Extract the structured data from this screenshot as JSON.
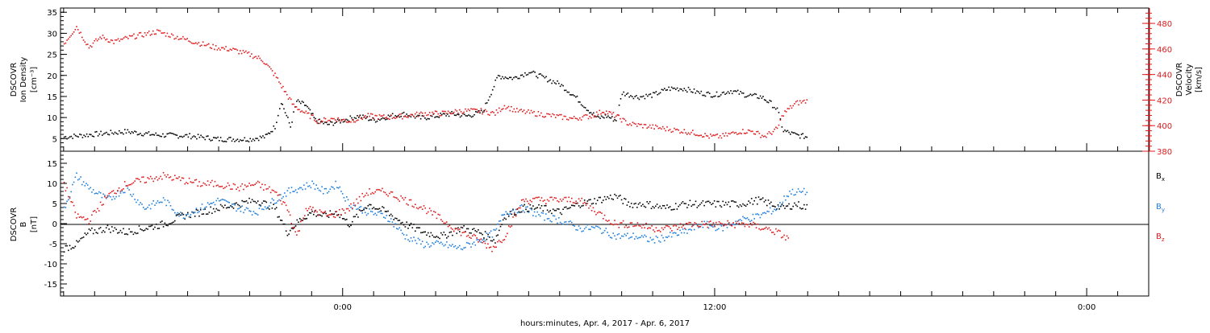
{
  "colors": {
    "black": "#000000",
    "red": "#e0191c",
    "blue": "#1f7fdd"
  },
  "chart_data": [
    {
      "type": "scatter",
      "panel": "top",
      "ylabel_left": [
        "DSCOVR",
        "Ion Density",
        "[cm⁻³]"
      ],
      "ylabel_right": [
        "DSCOVR",
        "Velocity",
        "[km/s]"
      ],
      "ylim_left": [
        2,
        36
      ],
      "ylim_right": [
        380,
        492
      ],
      "yticks_left": [
        5,
        10,
        15,
        20,
        25,
        30,
        35
      ],
      "yticks_right": [
        380,
        400,
        420,
        440,
        460,
        480
      ],
      "xlim_hours": [
        -9.1,
        26.0
      ],
      "series": [
        {
          "color": "#000000",
          "axis": "left",
          "points": [
            [
              -9.0,
              5.5
            ],
            [
              -8.0,
              6.2
            ],
            [
              -7.0,
              6.8
            ],
            [
              -6.0,
              6.0
            ],
            [
              -5.0,
              5.8
            ],
            [
              -4.0,
              5.0
            ],
            [
              -3.0,
              5.0
            ],
            [
              -2.5,
              5.6
            ],
            [
              -2.2,
              8.0
            ],
            [
              -2.0,
              14.0
            ],
            [
              -1.7,
              8.0
            ],
            [
              -1.5,
              14.0
            ],
            [
              -1.2,
              13.0
            ],
            [
              -0.9,
              9.5
            ],
            [
              -0.5,
              8.5
            ],
            [
              0.0,
              9.5
            ],
            [
              0.5,
              10.5
            ],
            [
              1.0,
              9.5
            ],
            [
              1.5,
              10.5
            ],
            [
              2.0,
              11.0
            ],
            [
              2.5,
              10.0
            ],
            [
              3.0,
              10.5
            ],
            [
              3.5,
              11.0
            ],
            [
              4.0,
              10.5
            ],
            [
              4.5,
              11.5
            ],
            [
              5.0,
              20.0
            ],
            [
              5.5,
              19.5
            ],
            [
              6.0,
              21.0
            ],
            [
              6.5,
              19.5
            ],
            [
              7.0,
              18.0
            ],
            [
              7.5,
              15.0
            ],
            [
              7.9,
              12.0
            ],
            [
              8.2,
              10.0
            ],
            [
              8.5,
              10.5
            ],
            [
              8.8,
              9.5
            ],
            [
              9.0,
              16.0
            ],
            [
              9.5,
              15.0
            ],
            [
              10.0,
              15.5
            ],
            [
              10.5,
              17.0
            ],
            [
              11.0,
              17.0
            ],
            [
              11.5,
              16.0
            ],
            [
              12.0,
              15.5
            ],
            [
              12.5,
              16.5
            ],
            [
              13.0,
              15.5
            ],
            [
              13.5,
              15.0
            ],
            [
              13.8,
              13.5
            ],
            [
              14.0,
              12.0
            ],
            [
              14.2,
              7.0
            ],
            [
              14.6,
              6.0
            ],
            [
              15.0,
              5.5
            ]
          ]
        },
        {
          "color": "#e0191c",
          "axis": "right",
          "points": [
            [
              -9.0,
              465
            ],
            [
              -8.6,
              478
            ],
            [
              -8.2,
              462
            ],
            [
              -7.8,
              470
            ],
            [
              -7.4,
              466
            ],
            [
              -6.8,
              470
            ],
            [
              -6.0,
              474
            ],
            [
              -5.4,
              470
            ],
            [
              -4.8,
              466
            ],
            [
              -4.2,
              462
            ],
            [
              -3.6,
              460
            ],
            [
              -3.0,
              456
            ],
            [
              -2.6,
              452
            ],
            [
              -2.2,
              440
            ],
            [
              -1.9,
              428
            ],
            [
              -1.6,
              416
            ],
            [
              -1.2,
              410
            ],
            [
              -0.8,
              404
            ],
            [
              -0.3,
              406
            ],
            [
              0.2,
              404
            ],
            [
              0.8,
              408
            ],
            [
              1.4,
              407
            ],
            [
              2.0,
              408
            ],
            [
              2.6,
              410
            ],
            [
              3.2,
              410
            ],
            [
              3.8,
              412
            ],
            [
              4.4,
              412
            ],
            [
              4.9,
              410
            ],
            [
              5.2,
              416
            ],
            [
              5.6,
              412
            ],
            [
              6.2,
              410
            ],
            [
              6.8,
              408
            ],
            [
              7.4,
              406
            ],
            [
              8.0,
              408
            ],
            [
              8.4,
              412
            ],
            [
              8.8,
              408
            ],
            [
              9.2,
              402
            ],
            [
              9.8,
              400
            ],
            [
              10.4,
              398
            ],
            [
              11.0,
              396
            ],
            [
              11.5,
              394
            ],
            [
              11.8,
              392
            ],
            [
              12.2,
              392
            ],
            [
              12.8,
              396
            ],
            [
              13.2,
              396
            ],
            [
              13.6,
              392
            ],
            [
              14.0,
              398
            ],
            [
              14.2,
              410
            ],
            [
              14.6,
              418
            ],
            [
              15.0,
              420
            ]
          ]
        }
      ]
    },
    {
      "type": "scatter",
      "panel": "bottom",
      "ylabel_left": [
        "DSCOVR",
        "B",
        "[nT]"
      ],
      "ylim": [
        -18,
        18
      ],
      "yticks": [
        -15,
        -10,
        -5,
        0,
        5,
        10,
        15
      ],
      "legend_placement": "right",
      "legend": [
        {
          "main": "B",
          "sub": "x",
          "color": "#000000"
        },
        {
          "main": "B",
          "sub": "y",
          "color": "#1f7fdd"
        },
        {
          "main": "B",
          "sub": "z",
          "color": "#e0191c"
        }
      ],
      "series": [
        {
          "color": "#000000",
          "points": [
            [
              -9.0,
              -6
            ],
            [
              -8.6,
              -5
            ],
            [
              -8.2,
              -2
            ],
            [
              -7.6,
              -1
            ],
            [
              -7.0,
              -2
            ],
            [
              -6.4,
              -1
            ],
            [
              -5.8,
              0
            ],
            [
              -5.2,
              2
            ],
            [
              -4.6,
              3
            ],
            [
              -4.0,
              4
            ],
            [
              -3.4,
              5
            ],
            [
              -2.8,
              6
            ],
            [
              -2.2,
              4
            ],
            [
              -1.8,
              -2
            ],
            [
              -1.4,
              1
            ],
            [
              -1.0,
              3
            ],
            [
              -0.6,
              2
            ],
            [
              -0.2,
              3
            ],
            [
              0.2,
              0
            ],
            [
              0.8,
              5
            ],
            [
              1.4,
              3
            ],
            [
              2.0,
              0
            ],
            [
              2.6,
              -2
            ],
            [
              3.2,
              -3
            ],
            [
              3.8,
              -1
            ],
            [
              4.4,
              -2
            ],
            [
              4.9,
              -4
            ],
            [
              5.2,
              2
            ],
            [
              5.8,
              4
            ],
            [
              6.4,
              4
            ],
            [
              7.0,
              3
            ],
            [
              7.6,
              5
            ],
            [
              8.2,
              6
            ],
            [
              8.8,
              7
            ],
            [
              9.2,
              5
            ],
            [
              9.8,
              5
            ],
            [
              10.4,
              4
            ],
            [
              11.0,
              5
            ],
            [
              11.6,
              5
            ],
            [
              12.2,
              5
            ],
            [
              12.8,
              5
            ],
            [
              13.4,
              6
            ],
            [
              13.8,
              5
            ],
            [
              14.2,
              4
            ],
            [
              14.6,
              5
            ],
            [
              15.0,
              4
            ]
          ]
        },
        {
          "color": "#1f7fdd",
          "points": [
            [
              -9.0,
              4
            ],
            [
              -8.6,
              12
            ],
            [
              -8.2,
              9
            ],
            [
              -7.6,
              6
            ],
            [
              -7.0,
              9
            ],
            [
              -6.4,
              4
            ],
            [
              -5.8,
              6
            ],
            [
              -5.2,
              2
            ],
            [
              -4.6,
              4
            ],
            [
              -4.0,
              6
            ],
            [
              -3.4,
              4
            ],
            [
              -2.8,
              3
            ],
            [
              -2.2,
              6
            ],
            [
              -1.8,
              8
            ],
            [
              -1.4,
              9
            ],
            [
              -1.0,
              10
            ],
            [
              -0.6,
              8
            ],
            [
              -0.2,
              10
            ],
            [
              0.2,
              5
            ],
            [
              0.8,
              3
            ],
            [
              1.4,
              2
            ],
            [
              2.0,
              -3
            ],
            [
              2.6,
              -5
            ],
            [
              3.2,
              -5
            ],
            [
              3.8,
              -6
            ],
            [
              4.4,
              -4
            ],
            [
              4.9,
              -2
            ],
            [
              5.2,
              3
            ],
            [
              5.8,
              4
            ],
            [
              6.4,
              2
            ],
            [
              7.0,
              1
            ],
            [
              7.6,
              -1
            ],
            [
              8.2,
              -1
            ],
            [
              8.8,
              -3
            ],
            [
              9.4,
              -3
            ],
            [
              10.0,
              -4
            ],
            [
              10.5,
              -3
            ],
            [
              11.0,
              -2
            ],
            [
              11.6,
              0
            ],
            [
              12.2,
              -1
            ],
            [
              12.8,
              1
            ],
            [
              13.4,
              2
            ],
            [
              14.0,
              4
            ],
            [
              14.4,
              8
            ],
            [
              15.0,
              8
            ]
          ]
        },
        {
          "color": "#e0191c",
          "points": [
            [
              -9.0,
              10
            ],
            [
              -8.6,
              2
            ],
            [
              -8.2,
              1
            ],
            [
              -7.6,
              7
            ],
            [
              -7.0,
              10
            ],
            [
              -6.4,
              11
            ],
            [
              -5.8,
              12
            ],
            [
              -5.2,
              11
            ],
            [
              -4.6,
              10
            ],
            [
              -4.0,
              10
            ],
            [
              -3.4,
              9
            ],
            [
              -2.8,
              10
            ],
            [
              -2.2,
              8
            ],
            [
              -1.8,
              4
            ],
            [
              -1.5,
              -3
            ],
            [
              -1.2,
              4
            ],
            [
              -0.8,
              3
            ],
            [
              -0.4,
              2
            ],
            [
              0.2,
              4
            ],
            [
              0.8,
              8
            ],
            [
              1.4,
              8
            ],
            [
              2.0,
              6
            ],
            [
              2.6,
              4
            ],
            [
              3.2,
              1
            ],
            [
              3.8,
              -2
            ],
            [
              4.4,
              -4
            ],
            [
              4.8,
              -6
            ],
            [
              5.2,
              -3
            ],
            [
              5.8,
              6
            ],
            [
              6.4,
              6
            ],
            [
              7.0,
              6
            ],
            [
              7.6,
              6
            ],
            [
              8.2,
              3
            ],
            [
              8.8,
              0
            ],
            [
              9.4,
              0
            ],
            [
              10.0,
              -1
            ],
            [
              10.6,
              -1
            ],
            [
              11.2,
              0
            ],
            [
              11.8,
              0
            ],
            [
              12.4,
              0
            ],
            [
              13.0,
              0
            ],
            [
              13.6,
              -1
            ],
            [
              14.0,
              -2
            ],
            [
              14.4,
              -4
            ]
          ]
        }
      ]
    }
  ],
  "x_axis": {
    "tick_labels": [
      {
        "hour": 0,
        "label": "0:00"
      },
      {
        "hour": 12,
        "label": "12:00"
      },
      {
        "hour": 24,
        "label": "0:00"
      }
    ],
    "title": "hours:minutes, Apr.  4, 2017 - Apr.  6, 2017"
  }
}
